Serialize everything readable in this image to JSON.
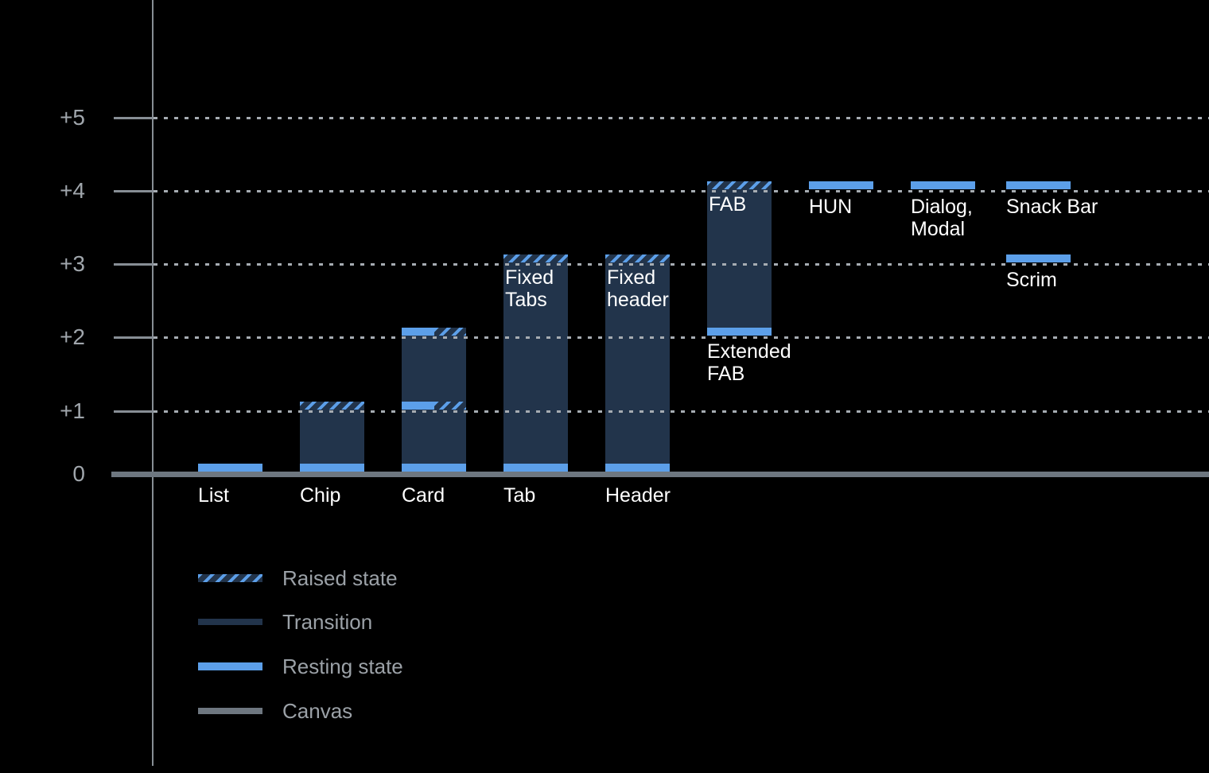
{
  "colors": {
    "background": "#000000",
    "resting_state": "#5C9FE9",
    "transition": "#22344B",
    "canvas": "#6E7780",
    "axis": "#878E95",
    "grid_dots": "#A6ACB2",
    "tick_label": "#A0A6AC",
    "item_label": "#FFFFFF",
    "legend_label": "#9BA1A7"
  },
  "chart_data": {
    "type": "bar",
    "subject": "Elevation levels of UI components above the canvas",
    "grid": "dotted horizontal lines at each elevation level",
    "y_axis": {
      "ylim": [
        0,
        5.9
      ],
      "ticks": [
        {
          "value": 0,
          "label": "0"
        },
        {
          "value": 1,
          "label": "+1"
        },
        {
          "value": 2,
          "label": "+2"
        },
        {
          "value": 3,
          "label": "+3"
        },
        {
          "value": 4,
          "label": "+4"
        },
        {
          "value": 5,
          "label": "+5"
        }
      ]
    },
    "legend": {
      "position": "bottom-left",
      "entries": [
        {
          "label": "Raised state",
          "swatch": "raised"
        },
        {
          "label": "Transition",
          "swatch": "transition"
        },
        {
          "label": "Resting state",
          "swatch": "resting"
        },
        {
          "label": "Canvas",
          "swatch": "canvas"
        }
      ]
    },
    "items": [
      {
        "name": "List",
        "column": 0,
        "bands": [
          {
            "level": 0,
            "style": "resting"
          }
        ],
        "base_label": {
          "lines": [
            "List"
          ],
          "position": "below-axis"
        }
      },
      {
        "name": "Chip",
        "column": 1,
        "bar": {
          "from": 0,
          "to": 1
        },
        "bands": [
          {
            "level": 0,
            "style": "resting"
          },
          {
            "level": 1,
            "style": "raised"
          }
        ],
        "base_label": {
          "lines": [
            "Chip"
          ],
          "position": "below-axis"
        }
      },
      {
        "name": "Card",
        "column": 2,
        "bar": {
          "from": 0,
          "to": 2
        },
        "bands": [
          {
            "level": 0,
            "style": "resting"
          },
          {
            "level": 1,
            "style": "split"
          },
          {
            "level": 2,
            "style": "split"
          }
        ],
        "base_label": {
          "lines": [
            "Card"
          ],
          "position": "below-axis"
        }
      },
      {
        "name": "Tab",
        "column": 3,
        "bar": {
          "from": 0,
          "to": 3
        },
        "bands": [
          {
            "level": 0,
            "style": "resting"
          },
          {
            "level": 3,
            "style": "raised"
          }
        ],
        "inner_label": {
          "lines": [
            "Fixed",
            "Tabs"
          ]
        },
        "base_label": {
          "lines": [
            "Tab"
          ],
          "position": "below-axis"
        }
      },
      {
        "name": "Header",
        "column": 4,
        "bar": {
          "from": 0,
          "to": 3
        },
        "bands": [
          {
            "level": 0,
            "style": "resting"
          },
          {
            "level": 3,
            "style": "raised"
          }
        ],
        "inner_label": {
          "lines": [
            "Fixed",
            "header"
          ]
        },
        "base_label": {
          "lines": [
            "Header"
          ],
          "position": "below-axis"
        }
      },
      {
        "name": "FAB",
        "column": 5,
        "bar": {
          "from": 2,
          "to": 4
        },
        "bands": [
          {
            "level": 2,
            "style": "resting"
          },
          {
            "level": 4,
            "style": "raised"
          }
        ],
        "inner_label": {
          "lines": [
            "FAB"
          ]
        },
        "base_label": {
          "lines": [
            "Extended",
            "FAB"
          ],
          "position": "below-bar"
        }
      },
      {
        "name": "HUN",
        "column": 6,
        "bands": [
          {
            "level": 4,
            "style": "resting"
          }
        ],
        "base_label": {
          "lines": [
            "HUN"
          ],
          "position": "below-band"
        }
      },
      {
        "name": "Dialog, Modal",
        "column": 7,
        "bands": [
          {
            "level": 4,
            "style": "resting"
          }
        ],
        "base_label": {
          "lines": [
            "Dialog,",
            "Modal"
          ],
          "position": "below-band"
        }
      },
      {
        "name": "Snack Bar",
        "column": 8,
        "bands": [
          {
            "level": 4,
            "style": "resting"
          }
        ],
        "base_label": {
          "lines": [
            "Snack Bar"
          ],
          "position": "below-band"
        }
      },
      {
        "name": "Scrim",
        "column": 8,
        "bands": [
          {
            "level": 3,
            "style": "resting"
          }
        ],
        "base_label": {
          "lines": [
            "Scrim"
          ],
          "position": "below-band"
        }
      }
    ]
  }
}
